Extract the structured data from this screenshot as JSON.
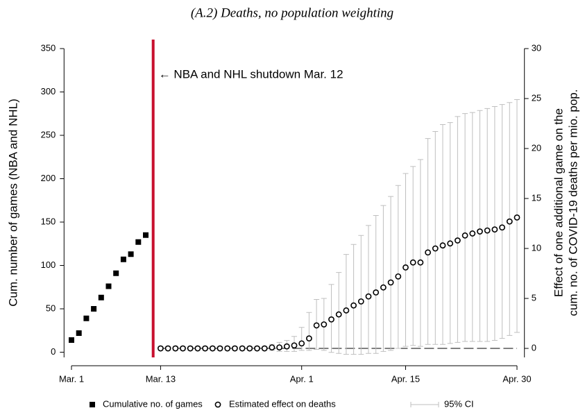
{
  "chart_data": {
    "type": "dual_axis_scatter",
    "title": "(A.2) Deaths, no population weighting",
    "ylabel": "Cum. number of games (NBA and NHL)",
    "y2label": [
      "Effect of one additional game on the",
      "cum. no. of COVID-19 deaths  per mio. pop."
    ],
    "xlim": [
      -1,
      61
    ],
    "xticks": [
      {
        "value": 0,
        "label": "Mar. 1"
      },
      {
        "value": 12,
        "label": "Mar. 13"
      },
      {
        "value": 31,
        "label": "Apr. 1"
      },
      {
        "value": 45,
        "label": "Apr. 15"
      },
      {
        "value": 60,
        "label": "Apr. 30"
      }
    ],
    "ylim": [
      -6,
      350
    ],
    "yticks": [
      0,
      50,
      100,
      150,
      200,
      250,
      300,
      350
    ],
    "y2lim": [
      -0.9,
      30
    ],
    "y2ticks": [
      0,
      5,
      10,
      15,
      20,
      25,
      30
    ],
    "events": [
      {
        "x": 11,
        "label": "← NBA and NHL shutdown Mar. 12",
        "color": "#c8102e"
      }
    ],
    "series": [
      {
        "name": "Cumulative no. of games",
        "color": "#000000",
        "marker": "square",
        "x": [
          0,
          1,
          2,
          3,
          4,
          5,
          6,
          7,
          8,
          9,
          10
        ],
        "values": [
          14,
          22,
          39,
          50,
          63,
          76,
          91,
          107,
          113,
          127,
          135
        ]
      },
      {
        "name": "Estimated effect on deaths",
        "color": "#000000",
        "marker": "circle",
        "axis": "y2",
        "x": [
          12,
          13,
          14,
          15,
          16,
          17,
          18,
          19,
          20,
          21,
          22,
          23,
          24,
          25,
          26,
          27,
          28,
          29,
          30,
          31,
          32,
          33,
          34,
          35,
          36,
          37,
          38,
          39,
          40,
          41,
          42,
          43,
          44,
          45,
          46,
          47,
          48,
          49,
          50,
          51,
          52,
          53,
          54,
          55,
          56,
          57,
          58,
          59,
          60
        ],
        "values": [
          0,
          0,
          0,
          0,
          0,
          0,
          0,
          0,
          0,
          0,
          0,
          0,
          0,
          0,
          0,
          0.1,
          0.1,
          0.2,
          0.3,
          0.5,
          1.0,
          2.3,
          2.4,
          2.9,
          3.4,
          3.8,
          4.3,
          4.7,
          5.2,
          5.6,
          6.1,
          6.6,
          7.2,
          8.1,
          8.6,
          8.6,
          9.6,
          10.0,
          10.3,
          10.5,
          10.8,
          11.3,
          11.5,
          11.7,
          11.8,
          11.9,
          12.1,
          12.7,
          13.1
        ]
      },
      {
        "name": "95% CI",
        "color": "#bfbfbf",
        "marker": "errorbar",
        "axis": "y2",
        "x": [
          12,
          13,
          14,
          15,
          16,
          17,
          18,
          19,
          20,
          21,
          22,
          23,
          24,
          25,
          26,
          27,
          28,
          29,
          30,
          31,
          32,
          33,
          34,
          35,
          36,
          37,
          38,
          39,
          40,
          41,
          42,
          43,
          44,
          45,
          46,
          47,
          48,
          49,
          50,
          51,
          52,
          53,
          54,
          55,
          56,
          57,
          58,
          59,
          60
        ],
        "lower": [
          -0.2,
          -0.2,
          -0.2,
          -0.2,
          -0.2,
          -0.2,
          -0.2,
          -0.2,
          -0.2,
          -0.2,
          -0.2,
          -0.2,
          -0.2,
          -0.2,
          -0.2,
          -0.2,
          -0.3,
          -0.3,
          -0.3,
          -0.2,
          -0.2,
          -0.1,
          -0.2,
          -0.4,
          -0.5,
          -0.6,
          -0.6,
          -0.6,
          -0.5,
          -0.5,
          -0.3,
          -0.2,
          0,
          0.2,
          0.3,
          0.2,
          0.4,
          0.4,
          0.4,
          0.5,
          0.6,
          0.7,
          0.7,
          0.7,
          0.7,
          0.8,
          1.0,
          1.3,
          1.6
        ],
        "upper": [
          0.2,
          0.2,
          0.2,
          0.2,
          0.2,
          0.2,
          0.2,
          0.2,
          0.2,
          0.2,
          0.2,
          0.2,
          0.2,
          0.2,
          0.2,
          0.4,
          0.6,
          0.8,
          1.2,
          2.1,
          3.6,
          4.9,
          5.0,
          6.4,
          7.6,
          9.4,
          10.4,
          11.3,
          12.3,
          13.3,
          14.3,
          15.2,
          16.3,
          17.5,
          18.2,
          18.9,
          21,
          21.7,
          22.4,
          22.6,
          23.2,
          23.5,
          23.6,
          23.8,
          24.0,
          24.2,
          24.4,
          24.6,
          24.9
        ]
      }
    ]
  }
}
